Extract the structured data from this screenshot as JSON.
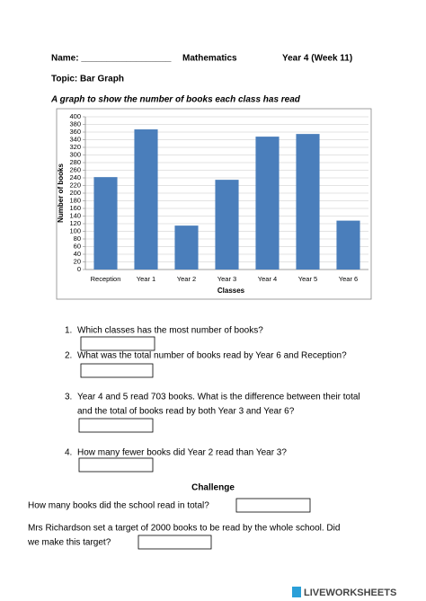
{
  "header": {
    "name": "Name: __________________",
    "subject": "Mathematics",
    "week": "Year 4 (Week 11)",
    "topic": "Topic: Bar Graph"
  },
  "chart_data": {
    "type": "bar",
    "title": "A graph to show the number of books each class has read",
    "x_label": "Classes",
    "y_label": "Number of books",
    "categories": [
      "Reception",
      "Year 1",
      "Year 2",
      "Year 3",
      "Year 4",
      "Year 5",
      "Year 6"
    ],
    "values": [
      242,
      367,
      115,
      235,
      348,
      355,
      128
    ],
    "color": "#4a7ebb",
    "ylim": [
      0,
      400
    ],
    "yticks": [
      0,
      20,
      40,
      60,
      80,
      100,
      120,
      140,
      160,
      180,
      200,
      220,
      240,
      260,
      280,
      300,
      320,
      340,
      360,
      380,
      400
    ],
    "grid": true
  },
  "questions": [
    {
      "number": "1.",
      "lines": [
        "Which classes has the most number of books?"
      ]
    },
    {
      "number": "2.",
      "lines": [
        "What was the total number of books read by Year 6 and Reception?"
      ]
    },
    {
      "number": "3.",
      "lines": [
        "Year 4 and 5 read 703 books. What is the difference between their total",
        "and the total of books read by both Year 3 and Year 6?"
      ]
    },
    {
      "number": "4.",
      "lines": [
        "How many fewer books did Year 2 read than Year 3?"
      ]
    }
  ],
  "challenge": {
    "heading": "Challenge",
    "total_question": "How many books did the school read in total?",
    "target_lines": [
      "Mrs Richardson set a target of 2000 books to be read by the whole school. Did",
      "we make this target?"
    ]
  },
  "footer": "LIVEWORKSHEETS"
}
